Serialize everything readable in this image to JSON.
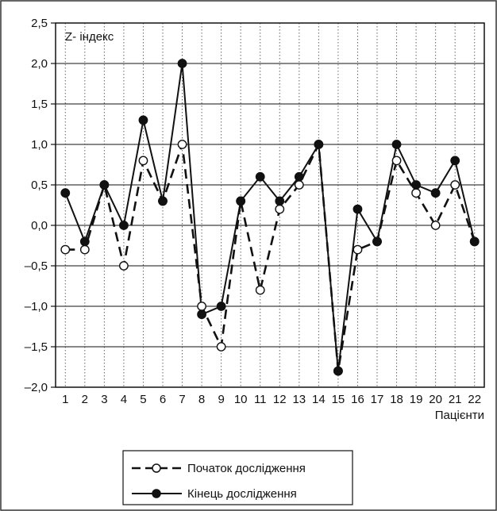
{
  "chart_data": {
    "type": "line",
    "title": "",
    "ylabel": "Z- індекс",
    "xlabel": "Пацієнти",
    "x": [
      "1",
      "2",
      "3",
      "4",
      "5",
      "6",
      "7",
      "8",
      "9",
      "10",
      "11",
      "12",
      "13",
      "14",
      "15",
      "16",
      "17",
      "18",
      "19",
      "20",
      "21",
      "22"
    ],
    "ylim": [
      -2.0,
      2.5
    ],
    "yticks": [
      "2,5",
      "2,0",
      "1,5",
      "1,0",
      "0,5",
      "0,0",
      "–0,5",
      "–1,0",
      "–1,5",
      "–2,0"
    ],
    "ytick_values": [
      2.5,
      2.0,
      1.5,
      1.0,
      0.5,
      0.0,
      -0.5,
      -1.0,
      -1.5,
      -2.0
    ],
    "grid": {
      "horizontal": "solid",
      "vertical": "dotted"
    },
    "legend_position": "bottom-center",
    "series": [
      {
        "name": "Початок дослідження",
        "style": "dashed",
        "marker": "open-circle",
        "color": "#111111",
        "values": [
          -0.3,
          -0.3,
          0.5,
          -0.5,
          0.8,
          0.3,
          1.0,
          -1.0,
          -1.5,
          0.3,
          -0.8,
          0.2,
          0.5,
          1.0,
          -1.8,
          -0.3,
          -0.2,
          0.8,
          0.4,
          0.0,
          0.5,
          -0.2
        ]
      },
      {
        "name": "Кінець дослідження",
        "style": "solid",
        "marker": "filled-circle",
        "color": "#111111",
        "values": [
          0.4,
          -0.2,
          0.5,
          0.0,
          1.3,
          0.3,
          2.0,
          -1.1,
          -1.0,
          0.3,
          0.6,
          0.3,
          0.6,
          1.0,
          -1.8,
          0.2,
          -0.2,
          1.0,
          0.5,
          0.4,
          0.8,
          -0.2
        ]
      }
    ]
  }
}
